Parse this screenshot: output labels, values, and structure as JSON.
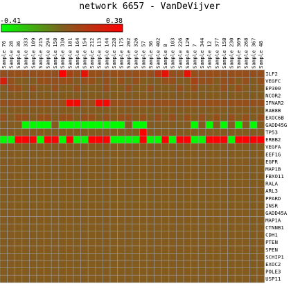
{
  "chart_data": {
    "type": "heatmap",
    "title": "network 6657 - VanDeVijver",
    "color_scale": {
      "min": -0.41,
      "max": 0.38,
      "min_label": "-0.41",
      "max_label": "0.38",
      "low_color": "#00ff00",
      "mid_color": "#7f5f1f",
      "high_color": "#ff0000"
    },
    "columns": [
      "Sample 76",
      "Sample 28",
      "Sample 36",
      "Sample 333",
      "Sample 109",
      "Sample 215",
      "Sample 294",
      "Sample 158",
      "Sample 310",
      "Sample 181",
      "Sample 164",
      "Sample 154",
      "Sample 212",
      "Sample 113",
      "Sample 144",
      "Sample 228",
      "Sample 175",
      "Sample 202",
      "Sample 326",
      "Sample 57",
      "Sample 36",
      "Sample 402",
      "Sample 8",
      "Sample 103",
      "Sample 226",
      "Sample 129",
      "Sample 7",
      "Sample 344",
      "Sample 12",
      "Sample 377",
      "Sample 158",
      "Sample 230",
      "Sample 369",
      "Sample 268",
      "Sample 367",
      "Sample 48"
    ],
    "rows": [
      "ILF2",
      "VEGFC",
      "EP300",
      "NCOR2",
      "IFNAR2",
      "RAB8B",
      "EXOC6B",
      "GADD45G",
      "TP53",
      "ERBB2",
      "VEGFA",
      "EEF1G",
      "EGFR",
      "MAP1B",
      "FBXO11",
      "RALA",
      "ARL3",
      "PPARD",
      "INSR",
      "GADD45A",
      "MAP1A",
      "CTNNB1",
      "CDH1",
      "PTEN",
      "SPEN",
      "SCHIP1",
      "EXOC2",
      "POLE3",
      "USP11"
    ],
    "values": [
      [
        0.05,
        0.05,
        0.05,
        0.05,
        0.05,
        0.05,
        0.05,
        0.05,
        0.38,
        0.1,
        0.05,
        0.3,
        0.05,
        0.05,
        0.05,
        0.05,
        0.05,
        0.05,
        0.05,
        0.05,
        0.05,
        0.15,
        0.3,
        0.05,
        0.05,
        0.3,
        0.05,
        0.05,
        0.05,
        0.05,
        0.05,
        0.05,
        0.05,
        0.05,
        0.05,
        0.05
      ],
      [
        0.25,
        0.05,
        0.0,
        0.0,
        0.0,
        0.05,
        0.05,
        0.05,
        0.05,
        0.05,
        0.0,
        0.05,
        0.05,
        0.0,
        0.05,
        0.0,
        0.05,
        0.0,
        0.05,
        0.0,
        0.0,
        0.0,
        0.05,
        0.05,
        0.0,
        0.0,
        0.1,
        0.05,
        0.05,
        0.0,
        0.05,
        0.05,
        0.0,
        0.05,
        0.0,
        0.05
      ],
      [
        0.0,
        0.05,
        0.05,
        0.0,
        0.05,
        0.0,
        0.0,
        0.05,
        0.0,
        0.0,
        0.05,
        0.0,
        0.0,
        0.0,
        0.05,
        0.0,
        0.0,
        0.05,
        0.0,
        0.0,
        0.05,
        0.0,
        0.0,
        0.0,
        0.05,
        0.0,
        0.05,
        0.0,
        0.0,
        0.0,
        0.05,
        0.0,
        0.05,
        0.0,
        0.0,
        0.0
      ],
      [
        0.0,
        0.0,
        0.0,
        0.0,
        0.0,
        0.0,
        0.0,
        0.0,
        0.0,
        0.0,
        0.0,
        0.0,
        0.0,
        0.0,
        0.0,
        0.0,
        0.0,
        0.0,
        0.0,
        0.0,
        0.0,
        0.0,
        0.0,
        0.0,
        0.0,
        0.0,
        0.0,
        0.0,
        0.0,
        0.0,
        0.0,
        0.0,
        0.0,
        0.0,
        0.0,
        0.0
      ],
      [
        0.05,
        0.05,
        0.05,
        0.05,
        0.05,
        0.05,
        0.05,
        0.05,
        0.05,
        0.35,
        0.35,
        0.05,
        0.05,
        0.35,
        0.35,
        0.05,
        0.05,
        0.05,
        0.05,
        0.05,
        0.05,
        0.05,
        0.05,
        0.05,
        0.05,
        0.05,
        0.05,
        0.05,
        0.05,
        0.05,
        0.05,
        0.05,
        0.05,
        0.05,
        0.05,
        0.05
      ],
      [
        0.0,
        0.0,
        0.0,
        0.0,
        0.0,
        0.0,
        0.0,
        0.0,
        0.0,
        0.0,
        0.0,
        0.0,
        0.0,
        0.0,
        0.0,
        0.0,
        0.0,
        0.0,
        0.0,
        0.0,
        0.0,
        0.0,
        0.0,
        0.0,
        0.0,
        0.0,
        0.0,
        0.0,
        0.0,
        0.0,
        0.0,
        0.0,
        0.0,
        0.0,
        0.0,
        0.0
      ],
      [
        0.05,
        0.0,
        0.05,
        0.05,
        0.0,
        0.05,
        0.05,
        0.0,
        0.05,
        0.05,
        0.0,
        0.05,
        0.05,
        0.0,
        0.05,
        0.0,
        0.05,
        0.05,
        0.0,
        0.05,
        0.0,
        0.05,
        0.0,
        0.05,
        0.0,
        0.05,
        0.0,
        0.05,
        0.0,
        0.05,
        0.0,
        0.05,
        0.0,
        0.05,
        0.0,
        0.05
      ],
      [
        0.0,
        0.0,
        0.0,
        -0.4,
        -0.4,
        -0.4,
        -0.4,
        0.0,
        -0.4,
        -0.4,
        -0.4,
        -0.4,
        -0.4,
        -0.4,
        -0.4,
        -0.4,
        -0.4,
        0.0,
        -0.4,
        -0.4,
        0.0,
        0.0,
        0.0,
        0.0,
        0.0,
        0.0,
        -0.4,
        0.0,
        -0.4,
        0.0,
        -0.4,
        0.0,
        -0.4,
        0.0,
        -0.4,
        0.0
      ],
      [
        0.0,
        0.0,
        0.0,
        0.0,
        0.0,
        0.0,
        0.0,
        0.0,
        0.0,
        0.0,
        0.0,
        0.0,
        0.0,
        0.0,
        0.0,
        0.0,
        0.0,
        0.0,
        0.0,
        0.38,
        0.0,
        0.0,
        0.0,
        0.0,
        0.0,
        0.0,
        0.0,
        0.0,
        0.0,
        0.0,
        0.0,
        0.0,
        0.0,
        0.0,
        0.0,
        0.0
      ],
      [
        -0.4,
        -0.4,
        0.38,
        0.38,
        0.38,
        -0.4,
        0.38,
        0.38,
        -0.4,
        0.38,
        -0.4,
        -0.4,
        0.38,
        0.38,
        0.38,
        -0.4,
        -0.4,
        -0.4,
        -0.4,
        0.38,
        -0.4,
        -0.4,
        0.38,
        -0.4,
        0.38,
        0.38,
        -0.4,
        -0.4,
        0.38,
        0.38,
        0.38,
        -0.4,
        0.38,
        0.38,
        0.38,
        0.38
      ],
      [
        0.0,
        0.0,
        0.0,
        0.0,
        0.0,
        0.0,
        0.0,
        0.0,
        0.0,
        0.0,
        0.0,
        0.0,
        0.0,
        0.0,
        0.0,
        0.0,
        0.0,
        0.0,
        0.0,
        0.0,
        0.0,
        0.0,
        0.0,
        0.0,
        0.0,
        0.0,
        0.0,
        0.0,
        0.0,
        0.0,
        0.0,
        0.0,
        0.0,
        0.0,
        0.0,
        0.0
      ],
      [
        0.0,
        0.0,
        0.0,
        0.0,
        0.0,
        0.0,
        0.0,
        0.0,
        0.0,
        0.0,
        0.0,
        0.0,
        0.0,
        0.0,
        0.0,
        0.0,
        0.0,
        0.0,
        0.0,
        0.0,
        0.0,
        0.0,
        0.0,
        0.0,
        0.0,
        0.0,
        0.0,
        0.0,
        0.0,
        0.0,
        0.0,
        0.0,
        0.0,
        0.0,
        0.0,
        0.0
      ],
      [
        0.0,
        0.0,
        0.0,
        0.0,
        0.0,
        0.0,
        0.0,
        0.0,
        0.0,
        0.0,
        0.0,
        0.0,
        0.0,
        0.0,
        0.0,
        0.0,
        0.0,
        0.0,
        0.0,
        0.0,
        0.0,
        0.0,
        0.0,
        0.0,
        0.0,
        0.0,
        0.0,
        0.0,
        0.0,
        0.0,
        0.0,
        0.0,
        0.0,
        0.0,
        0.0,
        0.0
      ],
      [
        0.0,
        0.0,
        0.0,
        0.0,
        0.0,
        0.0,
        0.0,
        0.0,
        0.0,
        0.0,
        0.0,
        0.0,
        0.0,
        0.0,
        0.0,
        0.0,
        0.0,
        0.0,
        0.0,
        0.0,
        0.0,
        0.0,
        0.0,
        0.0,
        0.0,
        0.0,
        0.0,
        0.0,
        0.0,
        0.0,
        0.0,
        0.0,
        0.0,
        0.0,
        0.0,
        0.0
      ],
      [
        0.0,
        0.0,
        0.0,
        0.0,
        0.0,
        0.0,
        0.0,
        0.0,
        0.0,
        0.0,
        0.0,
        0.0,
        0.0,
        0.0,
        0.0,
        0.0,
        0.0,
        0.0,
        0.0,
        0.0,
        0.0,
        0.0,
        0.0,
        0.0,
        0.0,
        0.0,
        0.0,
        0.0,
        0.0,
        0.0,
        0.0,
        0.0,
        0.0,
        0.0,
        0.0,
        0.0
      ],
      [
        0.0,
        0.0,
        0.0,
        0.0,
        0.0,
        0.0,
        0.0,
        0.0,
        0.0,
        0.0,
        0.0,
        0.0,
        0.0,
        0.0,
        0.0,
        0.0,
        0.0,
        0.0,
        0.0,
        0.0,
        0.0,
        0.0,
        0.0,
        0.0,
        0.0,
        0.0,
        0.0,
        0.0,
        0.0,
        0.0,
        0.0,
        0.0,
        0.0,
        0.0,
        0.0,
        0.0
      ],
      [
        0.0,
        0.0,
        0.0,
        0.0,
        0.0,
        0.0,
        0.0,
        0.0,
        0.0,
        0.0,
        0.0,
        0.0,
        0.0,
        0.0,
        0.0,
        0.0,
        0.0,
        0.0,
        0.0,
        0.0,
        0.0,
        0.0,
        0.0,
        0.0,
        0.0,
        0.0,
        0.0,
        0.0,
        0.0,
        0.0,
        0.0,
        0.0,
        0.0,
        0.0,
        0.0,
        0.0
      ],
      [
        0.0,
        0.0,
        0.0,
        0.0,
        0.0,
        0.0,
        0.0,
        0.0,
        0.0,
        0.0,
        0.0,
        0.0,
        0.0,
        0.0,
        0.0,
        0.0,
        0.0,
        0.0,
        0.0,
        0.0,
        0.0,
        0.0,
        0.0,
        0.0,
        0.0,
        0.0,
        0.0,
        0.0,
        0.0,
        0.0,
        0.0,
        0.0,
        0.0,
        0.0,
        0.0,
        0.0
      ],
      [
        0.0,
        0.0,
        0.0,
        0.0,
        0.0,
        0.0,
        0.0,
        0.0,
        0.0,
        0.0,
        0.0,
        0.0,
        0.0,
        0.0,
        0.0,
        0.0,
        0.0,
        0.0,
        0.0,
        0.0,
        0.0,
        0.0,
        0.0,
        0.0,
        0.0,
        0.0,
        0.0,
        0.0,
        0.0,
        0.0,
        0.0,
        0.0,
        0.0,
        0.0,
        0.0,
        0.0
      ],
      [
        0.0,
        0.0,
        0.0,
        0.0,
        0.0,
        0.0,
        0.0,
        0.0,
        0.0,
        0.0,
        0.0,
        0.0,
        0.0,
        0.0,
        0.0,
        0.0,
        0.0,
        0.0,
        0.0,
        0.0,
        0.0,
        0.0,
        0.0,
        0.0,
        0.0,
        0.0,
        0.0,
        0.0,
        0.0,
        0.0,
        0.0,
        0.0,
        0.0,
        0.0,
        0.0,
        0.0
      ],
      [
        0.0,
        0.0,
        0.0,
        0.0,
        0.0,
        0.0,
        0.0,
        0.0,
        0.0,
        0.0,
        0.0,
        0.0,
        0.0,
        0.0,
        0.0,
        0.0,
        0.0,
        0.0,
        0.0,
        0.0,
        0.0,
        0.0,
        0.0,
        0.0,
        0.0,
        0.0,
        0.0,
        0.0,
        0.0,
        0.0,
        0.0,
        0.0,
        0.0,
        0.0,
        0.0,
        0.0
      ],
      [
        0.0,
        0.0,
        0.0,
        0.0,
        0.0,
        0.0,
        0.0,
        0.0,
        0.0,
        0.0,
        0.0,
        0.0,
        0.0,
        0.0,
        0.0,
        0.0,
        0.0,
        0.0,
        0.0,
        0.0,
        0.0,
        0.0,
        0.0,
        0.0,
        0.0,
        0.0,
        0.0,
        0.0,
        0.0,
        0.0,
        0.0,
        0.0,
        0.0,
        0.0,
        0.0,
        0.0
      ],
      [
        0.0,
        0.0,
        0.0,
        0.0,
        0.0,
        0.0,
        0.0,
        0.0,
        0.0,
        0.0,
        0.0,
        0.0,
        0.0,
        0.0,
        0.0,
        0.0,
        0.0,
        0.0,
        0.0,
        0.0,
        0.0,
        0.0,
        0.0,
        0.0,
        0.0,
        0.0,
        0.0,
        0.0,
        0.0,
        0.0,
        0.0,
        0.0,
        0.0,
        0.0,
        0.0,
        0.0
      ],
      [
        0.0,
        0.0,
        0.0,
        0.0,
        0.0,
        0.0,
        0.0,
        0.0,
        0.0,
        0.0,
        0.0,
        0.0,
        0.0,
        0.0,
        0.0,
        0.0,
        0.0,
        0.0,
        0.0,
        0.0,
        0.0,
        0.0,
        0.0,
        0.0,
        0.0,
        0.0,
        0.0,
        0.0,
        0.0,
        0.0,
        0.0,
        0.0,
        0.0,
        0.0,
        0.0,
        0.0
      ],
      [
        0.0,
        0.0,
        0.0,
        0.0,
        0.0,
        0.0,
        0.0,
        0.0,
        0.0,
        0.0,
        0.0,
        0.0,
        0.0,
        0.0,
        0.0,
        0.0,
        0.0,
        0.0,
        0.0,
        0.0,
        0.0,
        0.0,
        0.0,
        0.0,
        0.0,
        0.0,
        0.0,
        0.0,
        0.0,
        0.0,
        0.0,
        0.0,
        0.0,
        0.0,
        0.0,
        0.0
      ],
      [
        0.0,
        0.0,
        0.0,
        0.0,
        0.0,
        0.0,
        0.0,
        0.0,
        0.0,
        0.0,
        0.0,
        0.0,
        0.0,
        0.0,
        0.0,
        0.0,
        0.0,
        0.0,
        0.0,
        0.0,
        0.0,
        0.0,
        0.0,
        0.0,
        0.0,
        0.0,
        0.0,
        0.0,
        0.0,
        0.0,
        0.0,
        0.0,
        0.0,
        0.0,
        0.0,
        0.0
      ],
      [
        0.0,
        0.0,
        0.0,
        0.0,
        0.0,
        0.0,
        0.0,
        0.0,
        0.0,
        0.0,
        0.0,
        0.0,
        0.0,
        0.0,
        0.0,
        0.0,
        0.0,
        0.0,
        0.0,
        0.0,
        0.0,
        0.0,
        0.0,
        0.0,
        0.0,
        0.0,
        0.0,
        0.0,
        0.0,
        0.0,
        0.0,
        0.0,
        0.0,
        0.0,
        0.0,
        0.0
      ],
      [
        0.0,
        0.0,
        0.0,
        0.0,
        0.0,
        0.0,
        0.0,
        0.0,
        0.0,
        0.0,
        0.0,
        0.0,
        0.0,
        0.0,
        0.0,
        0.0,
        0.0,
        0.0,
        0.0,
        0.0,
        0.0,
        0.0,
        0.0,
        0.0,
        0.0,
        0.0,
        0.0,
        0.0,
        0.0,
        0.0,
        0.0,
        0.0,
        0.0,
        0.0,
        0.0,
        0.0
      ],
      [
        0.0,
        0.0,
        0.0,
        0.0,
        0.0,
        0.0,
        0.0,
        0.0,
        0.0,
        0.0,
        0.0,
        0.0,
        0.0,
        0.0,
        0.0,
        0.0,
        0.0,
        0.0,
        0.0,
        0.0,
        0.0,
        0.0,
        0.0,
        0.0,
        0.0,
        0.0,
        0.0,
        0.0,
        0.0,
        0.0,
        0.0,
        0.0,
        0.0,
        0.0,
        0.0,
        0.0
      ]
    ]
  }
}
